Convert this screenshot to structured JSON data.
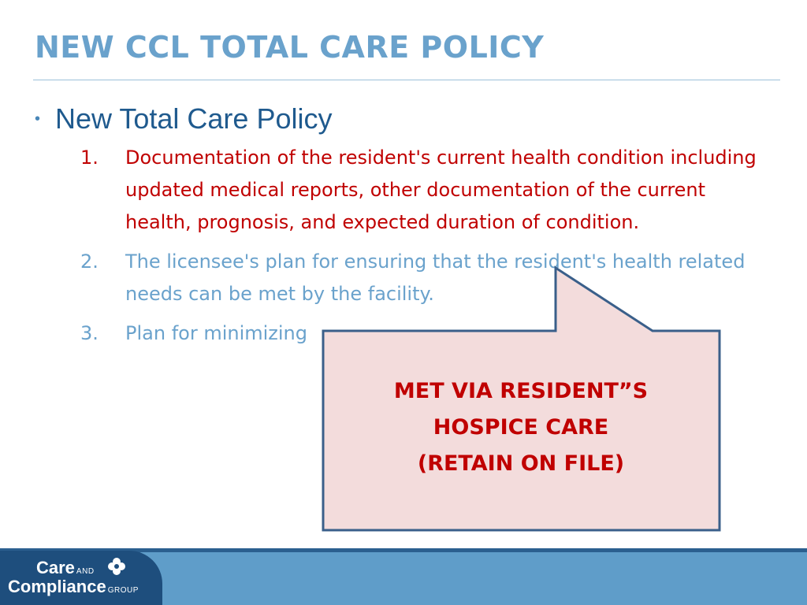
{
  "slide": {
    "title": "NEW CCL TOTAL CARE POLICY",
    "bullet": {
      "marker": "•",
      "text": "New Total Care Policy"
    },
    "items": [
      {
        "number": "1.",
        "text": "Documentation of the resident's current health condition including updated medical reports, other documentation of the current health, prognosis, and expected duration of condition.",
        "color": "#c00000"
      },
      {
        "number": "2.",
        "text": "The licensee's plan for ensuring that the resident's health related needs can be met by the facility.",
        "color": "#6aa2cc"
      },
      {
        "number": "3.",
        "text": "Plan for minimizing",
        "color": "#6aa2cc"
      }
    ]
  },
  "callout": {
    "lines": [
      "MET VIA RESIDENT”S",
      "HOSPICE CARE",
      "(RETAIN ON FILE)"
    ],
    "fill": "#f3dcdc",
    "border": "#3a5f8a",
    "text_color": "#c00000"
  },
  "footer": {
    "logo": {
      "word1": "Care",
      "word2": "AND",
      "word3": "Compliance",
      "word4": "GROUP",
      "icon": "clover-logo-icon"
    },
    "bar_color": "#5f9dc9",
    "logo_bg": "#1e4e7d"
  }
}
